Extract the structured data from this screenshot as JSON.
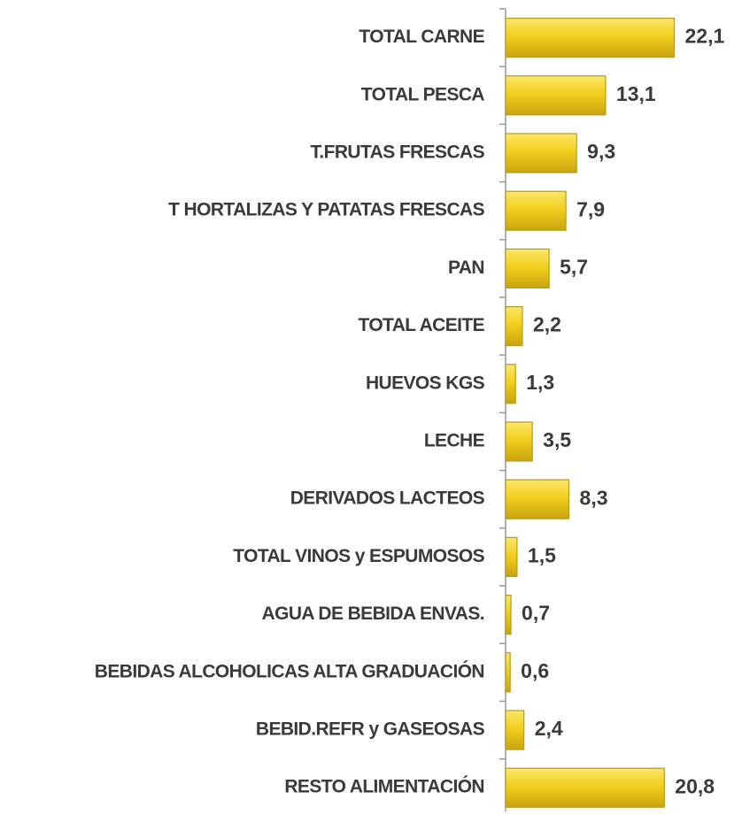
{
  "chart_data": {
    "type": "bar",
    "orientation": "horizontal",
    "categories": [
      "TOTAL CARNE",
      "TOTAL PESCA",
      "T.FRUTAS FRESCAS",
      "T HORTALIZAS Y PATATAS FRESCAS",
      "PAN",
      "TOTAL ACEITE",
      "HUEVOS KGS",
      "LECHE",
      "DERIVADOS LACTEOS",
      "TOTAL VINOS y ESPUMOSOS",
      "AGUA DE BEBIDA ENVAS.",
      "BEBIDAS ALCOHOLICAS ALTA GRADUACIÓN",
      "BEBID.REFR y GASEOSAS",
      "RESTO ALIMENTACIÓN"
    ],
    "values": [
      22.1,
      13.1,
      9.3,
      7.9,
      5.7,
      2.2,
      1.3,
      3.5,
      8.3,
      1.5,
      0.7,
      0.6,
      2.4,
      20.8
    ],
    "value_labels": [
      "22,1",
      "13,1",
      "9,3",
      "7,9",
      "5,7",
      "2,2",
      "1,3",
      "3,5",
      "8,3",
      "1,5",
      "0,7",
      "0,6",
      "2,4",
      "20,8"
    ],
    "color": "#f2cf1e"
  }
}
